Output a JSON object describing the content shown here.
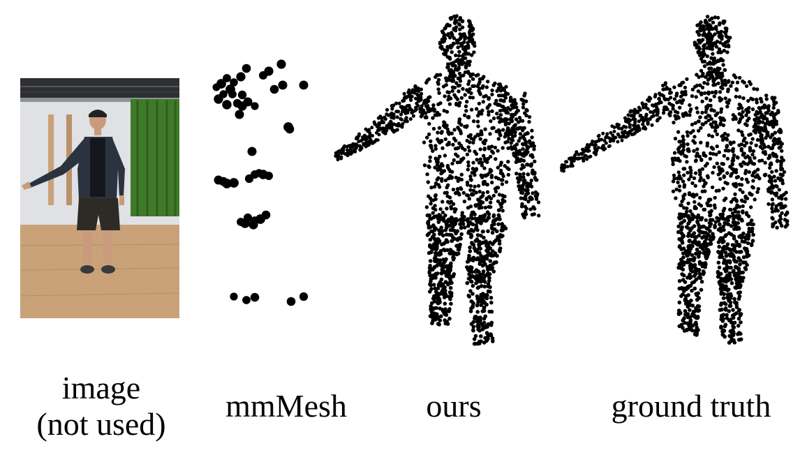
{
  "captions": {
    "image_line1": "image",
    "image_line2": "(not used)",
    "mmmesh": "mmMesh",
    "ours": "ours",
    "ground_truth": "ground truth"
  },
  "colors": {
    "point": "#000000",
    "wall": "#dfe1e4",
    "floor": "#c9a27a",
    "curtain": "#3f7a2a",
    "ceiling": "#2d2f33"
  }
}
